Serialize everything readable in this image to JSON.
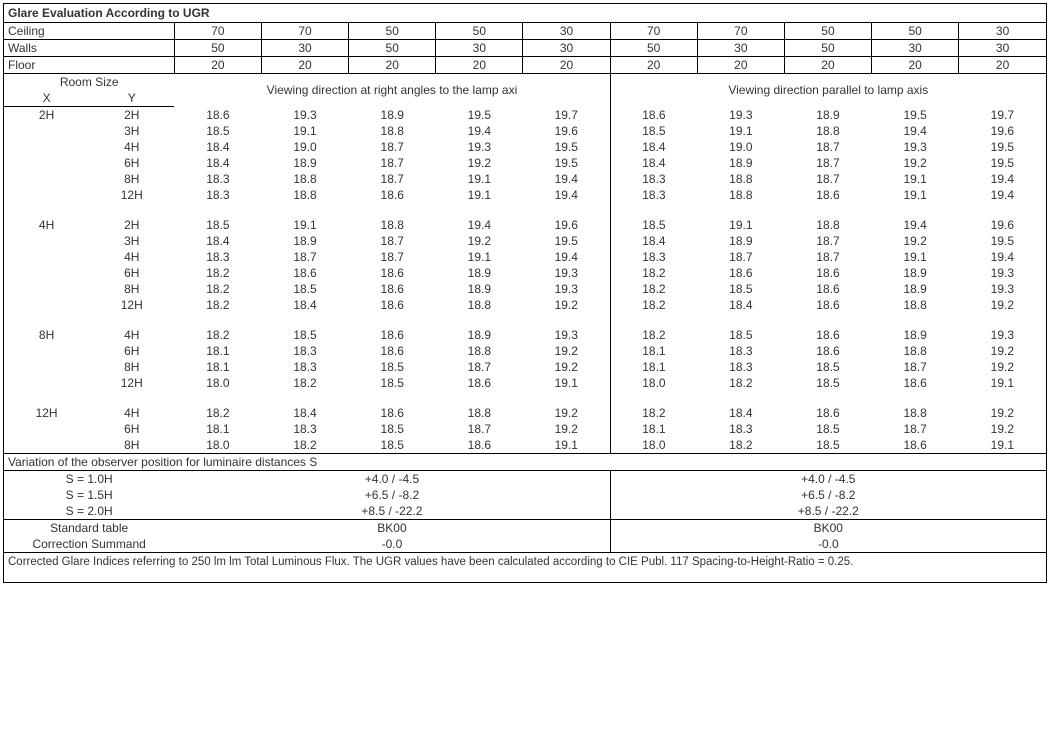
{
  "title": "Glare Evaluation According to UGR",
  "header_rows": [
    {
      "label": "Ceiling",
      "vals": [
        "70",
        "70",
        "50",
        "50",
        "30",
        "70",
        "70",
        "50",
        "50",
        "30"
      ]
    },
    {
      "label": "Walls",
      "vals": [
        "50",
        "30",
        "50",
        "30",
        "30",
        "50",
        "30",
        "50",
        "30",
        "30"
      ]
    },
    {
      "label": "Floor",
      "vals": [
        "20",
        "20",
        "20",
        "20",
        "20",
        "20",
        "20",
        "20",
        "20",
        "20"
      ]
    }
  ],
  "room_size_label": "Room Size",
  "x_label": "X",
  "y_label": "Y",
  "group1_head": "Viewing direction at right angles to the lamp axi",
  "group2_head": "Viewing direction parallel to lamp axis",
  "blocks": [
    {
      "x": "2H",
      "rows": [
        {
          "y": "2H",
          "a": [
            "18.6",
            "19.3",
            "18.9",
            "19.5",
            "19.7"
          ],
          "b": [
            "18.6",
            "19.3",
            "18.9",
            "19.5",
            "19.7"
          ]
        },
        {
          "y": "3H",
          "a": [
            "18.5",
            "19.1",
            "18.8",
            "19.4",
            "19.6"
          ],
          "b": [
            "18.5",
            "19.1",
            "18.8",
            "19.4",
            "19.6"
          ]
        },
        {
          "y": "4H",
          "a": [
            "18.4",
            "19.0",
            "18.7",
            "19.3",
            "19.5"
          ],
          "b": [
            "18.4",
            "19.0",
            "18.7",
            "19.3",
            "19.5"
          ]
        },
        {
          "y": "6H",
          "a": [
            "18.4",
            "18.9",
            "18.7",
            "19.2",
            "19.5"
          ],
          "b": [
            "18.4",
            "18.9",
            "18.7",
            "19.2",
            "19.5"
          ]
        },
        {
          "y": "8H",
          "a": [
            "18.3",
            "18.8",
            "18.7",
            "19.1",
            "19.4"
          ],
          "b": [
            "18.3",
            "18.8",
            "18.7",
            "19.1",
            "19.4"
          ]
        },
        {
          "y": "12H",
          "a": [
            "18.3",
            "18.8",
            "18.6",
            "19.1",
            "19.4"
          ],
          "b": [
            "18.3",
            "18.8",
            "18.6",
            "19.1",
            "19.4"
          ]
        }
      ]
    },
    {
      "x": "4H",
      "rows": [
        {
          "y": "2H",
          "a": [
            "18.5",
            "19.1",
            "18.8",
            "19.4",
            "19.6"
          ],
          "b": [
            "18.5",
            "19.1",
            "18.8",
            "19.4",
            "19.6"
          ]
        },
        {
          "y": "3H",
          "a": [
            "18.4",
            "18.9",
            "18.7",
            "19.2",
            "19.5"
          ],
          "b": [
            "18.4",
            "18.9",
            "18.7",
            "19.2",
            "19.5"
          ]
        },
        {
          "y": "4H",
          "a": [
            "18.3",
            "18.7",
            "18.7",
            "19.1",
            "19.4"
          ],
          "b": [
            "18.3",
            "18.7",
            "18.7",
            "19.1",
            "19.4"
          ]
        },
        {
          "y": "6H",
          "a": [
            "18.2",
            "18.6",
            "18.6",
            "18.9",
            "19.3"
          ],
          "b": [
            "18.2",
            "18.6",
            "18.6",
            "18.9",
            "19.3"
          ]
        },
        {
          "y": "8H",
          "a": [
            "18.2",
            "18.5",
            "18.6",
            "18.9",
            "19.3"
          ],
          "b": [
            "18.2",
            "18.5",
            "18.6",
            "18.9",
            "19.3"
          ]
        },
        {
          "y": "12H",
          "a": [
            "18.2",
            "18.4",
            "18.6",
            "18.8",
            "19.2"
          ],
          "b": [
            "18.2",
            "18.4",
            "18.6",
            "18.8",
            "19.2"
          ]
        }
      ]
    },
    {
      "x": "8H",
      "rows": [
        {
          "y": "4H",
          "a": [
            "18.2",
            "18.5",
            "18.6",
            "18.9",
            "19.3"
          ],
          "b": [
            "18.2",
            "18.5",
            "18.6",
            "18.9",
            "19.3"
          ]
        },
        {
          "y": "6H",
          "a": [
            "18.1",
            "18.3",
            "18.6",
            "18.8",
            "19.2"
          ],
          "b": [
            "18.1",
            "18.3",
            "18.6",
            "18.8",
            "19.2"
          ]
        },
        {
          "y": "8H",
          "a": [
            "18.1",
            "18.3",
            "18.5",
            "18.7",
            "19.2"
          ],
          "b": [
            "18.1",
            "18.3",
            "18.5",
            "18.7",
            "19.2"
          ]
        },
        {
          "y": "12H",
          "a": [
            "18.0",
            "18.2",
            "18.5",
            "18.6",
            "19.1"
          ],
          "b": [
            "18.0",
            "18.2",
            "18.5",
            "18.6",
            "19.1"
          ]
        }
      ]
    },
    {
      "x": "12H",
      "rows": [
        {
          "y": "4H",
          "a": [
            "18.2",
            "18.4",
            "18.6",
            "18.8",
            "19.2"
          ],
          "b": [
            "18.2",
            "18.4",
            "18.6",
            "18.8",
            "19.2"
          ]
        },
        {
          "y": "6H",
          "a": [
            "18.1",
            "18.3",
            "18.5",
            "18.7",
            "19.2"
          ],
          "b": [
            "18.1",
            "18.3",
            "18.5",
            "18.7",
            "19.2"
          ]
        },
        {
          "y": "8H",
          "a": [
            "18.0",
            "18.2",
            "18.5",
            "18.6",
            "19.1"
          ],
          "b": [
            "18.0",
            "18.2",
            "18.5",
            "18.6",
            "19.1"
          ]
        }
      ]
    }
  ],
  "observer_heading": "Variation of the observer position for luminaire distances S",
  "observer_rows": [
    {
      "s": "S = 1.0H",
      "a": "+4.0 / -4.5",
      "b": "+4.0 / -4.5"
    },
    {
      "s": "S = 1.5H",
      "a": "+6.5 / -8.2",
      "b": "+6.5 / -8.2"
    },
    {
      "s": "S = 2.0H",
      "a": "+8.5 / -22.2",
      "b": "+8.5 / -22.2"
    }
  ],
  "std_table_label": "Standard table",
  "std_table_a": "BK00",
  "std_table_b": "BK00",
  "corr_label": "Correction Summand",
  "corr_a": "-0.0",
  "corr_b": "-0.0",
  "footer": "Corrected Glare Indices referring to 250 lm lm Total Luminous Flux. The UGR values have been calculated according to CIE Publ. 117    Spacing-to-Height-Ratio = 0.25."
}
